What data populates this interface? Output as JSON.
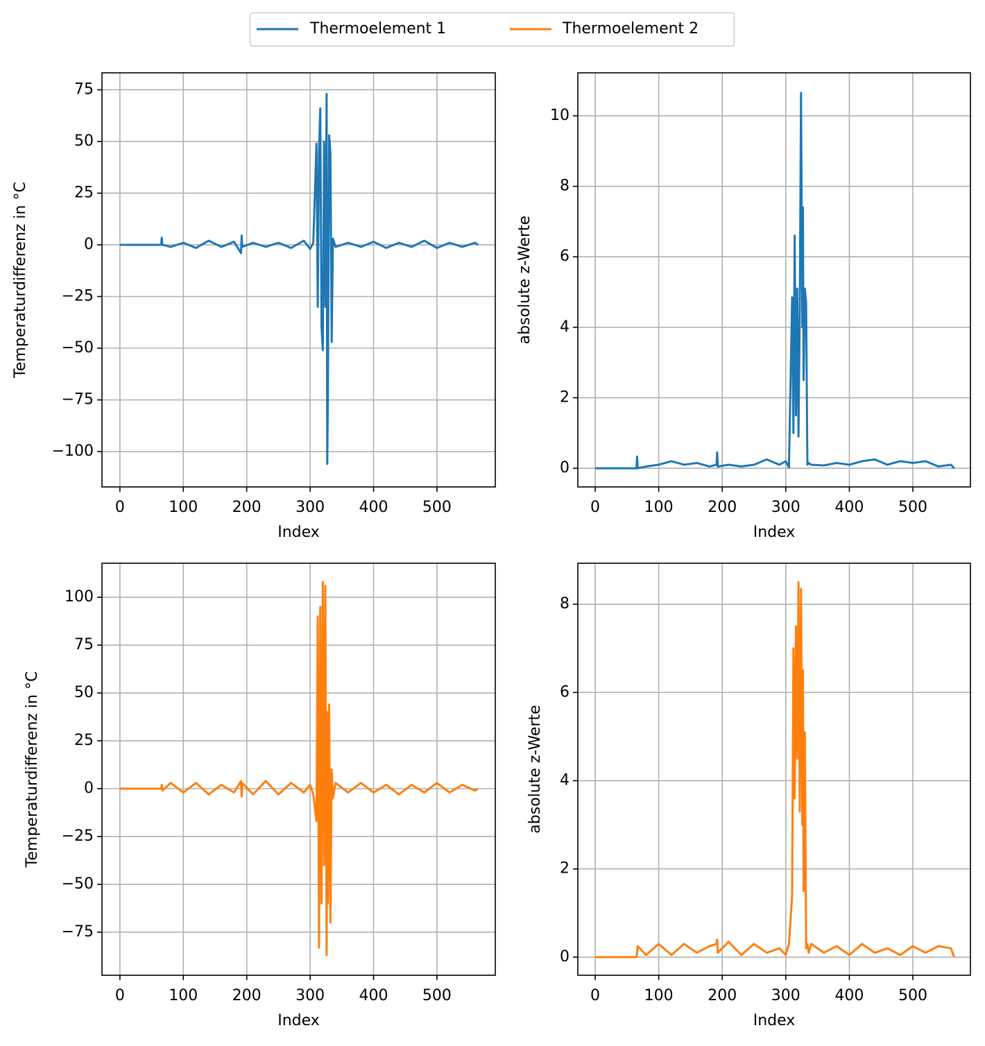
{
  "chart_data": [
    {
      "type": "line",
      "grid": true,
      "xlabel": "Index",
      "ylabel": "Temperaturdifferenz in °C",
      "xlim": [
        -28.3,
        592
      ],
      "xticks": [
        0,
        100,
        200,
        300,
        400,
        500
      ],
      "ylim": [
        -117.1,
        83.2
      ],
      "yticks": [
        {
          "value": -100,
          "label": "−100"
        },
        {
          "value": -75,
          "label": "−75"
        },
        {
          "value": -50,
          "label": "−50"
        },
        {
          "value": -25,
          "label": "−25"
        },
        0,
        25,
        50,
        75
      ],
      "x": [
        0,
        65,
        66,
        67,
        80,
        100,
        120,
        140,
        160,
        180,
        191,
        192,
        193,
        210,
        230,
        250,
        270,
        290,
        300,
        305,
        310,
        312,
        314,
        316,
        318,
        320,
        322,
        324,
        326,
        327,
        328,
        330,
        332,
        334,
        336,
        340,
        360,
        380,
        400,
        420,
        440,
        460,
        480,
        500,
        520,
        540,
        560,
        565
      ],
      "series": [
        {
          "name": "Thermoelement 1",
          "color": "#1f77b4",
          "values": [
            0,
            0,
            3.5,
            0,
            -1,
            1,
            -1.5,
            2,
            -1,
            1.5,
            -4,
            4.5,
            -1,
            1,
            -1,
            1,
            -1.5,
            2,
            -2,
            1,
            49,
            -30,
            45,
            66,
            -40,
            -51,
            50,
            -30,
            73,
            -106,
            -74,
            53,
            45,
            -47,
            3,
            -1,
            1,
            -1,
            1.5,
            -1.5,
            1,
            -1,
            2,
            -1.5,
            1,
            -1,
            1,
            0
          ]
        }
      ]
    },
    {
      "type": "line",
      "grid": true,
      "xlabel": "Index",
      "ylabel": "absolute z-Werte",
      "xlim": [
        -27.3,
        590.6
      ],
      "xticks": [
        0,
        100,
        200,
        300,
        400,
        500
      ],
      "ylim": [
        -0.53,
        11.22
      ],
      "yticks": [
        0,
        2,
        4,
        6,
        8,
        10
      ],
      "x": [
        0,
        65,
        66,
        67,
        80,
        100,
        120,
        140,
        160,
        180,
        191,
        192,
        193,
        210,
        230,
        250,
        270,
        290,
        300,
        305,
        310,
        312,
        314,
        316,
        318,
        320,
        322,
        324,
        326,
        327,
        328,
        330,
        332,
        334,
        336,
        340,
        360,
        380,
        400,
        420,
        440,
        460,
        480,
        500,
        520,
        540,
        560,
        565
      ],
      "series": [
        {
          "color": "#1f77b4",
          "values": [
            0,
            0,
            0.33,
            0,
            0.05,
            0.1,
            0.2,
            0.1,
            0.15,
            0.05,
            0.1,
            0.45,
            0.05,
            0.1,
            0.05,
            0.1,
            0.25,
            0.1,
            0.2,
            0.02,
            4.85,
            1,
            6.6,
            1.5,
            5.1,
            0.9,
            4.5,
            10.65,
            4,
            7.4,
            2.5,
            5.1,
            4.7,
            0.1,
            0.15,
            0.1,
            0.08,
            0.15,
            0.1,
            0.2,
            0.25,
            0.1,
            0.2,
            0.15,
            0.2,
            0.05,
            0.1,
            0
          ]
        }
      ]
    },
    {
      "type": "line",
      "grid": true,
      "xlabel": "Index",
      "ylabel": "Temperaturdifferenz in °C",
      "xlim": [
        -28.3,
        592
      ],
      "xticks": [
        0,
        100,
        200,
        300,
        400,
        500
      ],
      "ylim": [
        -97.5,
        117.8
      ],
      "yticks": [
        {
          "value": -75,
          "label": "−75"
        },
        {
          "value": -50,
          "label": "−50"
        },
        {
          "value": -25,
          "label": "−25"
        },
        0,
        25,
        50,
        75,
        100
      ],
      "x": [
        0,
        65,
        66,
        67,
        80,
        100,
        120,
        140,
        160,
        180,
        191,
        192,
        193,
        210,
        230,
        250,
        270,
        290,
        300,
        305,
        310,
        312,
        314,
        316,
        318,
        320,
        322,
        324,
        326,
        327,
        328,
        330,
        332,
        334,
        336,
        340,
        360,
        380,
        400,
        420,
        440,
        460,
        480,
        500,
        520,
        540,
        560,
        565
      ],
      "series": [
        {
          "name": "Thermoelement 2",
          "color": "#ff7f0e",
          "values": [
            0,
            0,
            2,
            -1,
            3,
            -2,
            3,
            -3,
            2,
            -2,
            4,
            -4,
            3,
            -3,
            4,
            -3,
            3,
            -2,
            2,
            -3,
            -17,
            90,
            -83,
            95,
            -60,
            108,
            -40,
            106,
            -87,
            40,
            -60,
            44,
            -70,
            10,
            -5,
            3,
            -2,
            3,
            -2,
            2,
            -3,
            2,
            -2,
            3,
            -2,
            2,
            -1,
            0
          ]
        }
      ]
    },
    {
      "type": "line",
      "grid": true,
      "xlabel": "Index",
      "ylabel": "absolute z-Werte",
      "xlim": [
        -27.3,
        590.6
      ],
      "xticks": [
        0,
        100,
        200,
        300,
        400,
        500
      ],
      "ylim": [
        -0.41,
        8.93
      ],
      "yticks": [
        0,
        2,
        4,
        6,
        8
      ],
      "x": [
        0,
        65,
        66,
        67,
        80,
        100,
        120,
        140,
        160,
        180,
        191,
        192,
        193,
        210,
        230,
        250,
        270,
        290,
        300,
        305,
        310,
        312,
        314,
        316,
        318,
        320,
        322,
        324,
        326,
        327,
        328,
        330,
        332,
        334,
        336,
        340,
        360,
        380,
        400,
        420,
        440,
        460,
        480,
        500,
        520,
        540,
        560,
        565
      ],
      "series": [
        {
          "color": "#ff7f0e",
          "values": [
            0,
            0,
            0.1,
            0.25,
            0.05,
            0.3,
            0.05,
            0.3,
            0.1,
            0.25,
            0.3,
            0.4,
            0.1,
            0.35,
            0.05,
            0.3,
            0.1,
            0.2,
            0.05,
            0.3,
            1.4,
            7,
            3.6,
            7.5,
            4.5,
            8.5,
            3.3,
            8.35,
            3,
            6.5,
            1.5,
            5.1,
            0.2,
            0.3,
            0.1,
            0.3,
            0.1,
            0.25,
            0.05,
            0.3,
            0.1,
            0.2,
            0.05,
            0.25,
            0.1,
            0.25,
            0.2,
            0
          ]
        }
      ]
    }
  ]
}
